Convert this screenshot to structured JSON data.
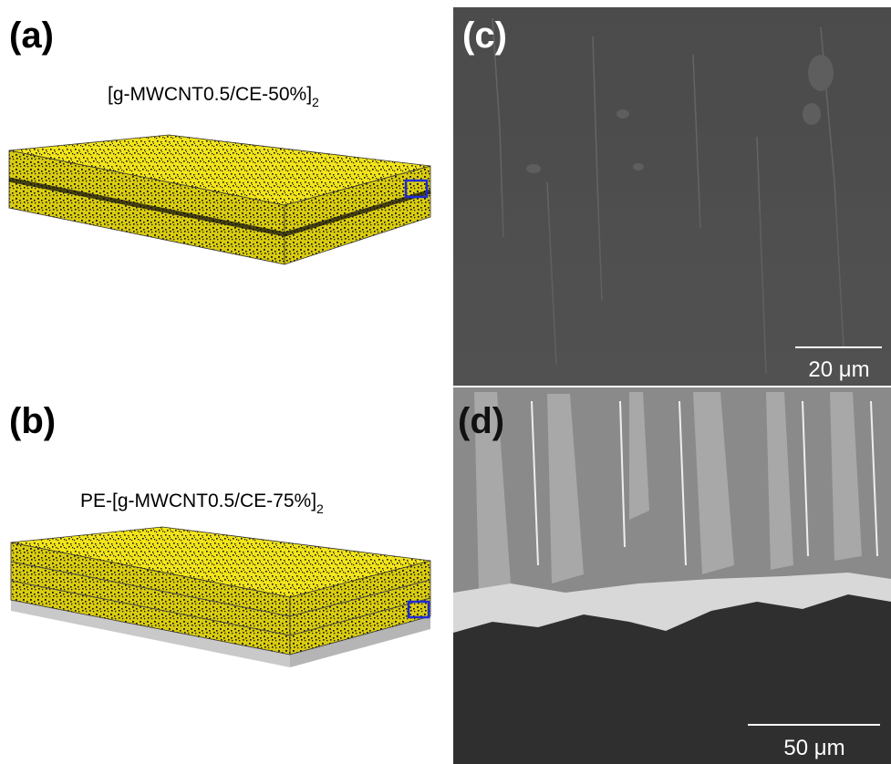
{
  "panels": [
    {
      "label": "(a)",
      "caption": "[g-MWCNT0.5/CE-50%]",
      "caption_subscript": "2"
    },
    {
      "label": "(b)",
      "caption": "PE-[g-MWCNT0.5/CE-75%]",
      "caption_subscript": "2"
    },
    {
      "label": "(c)",
      "scale_bar": "20 μm"
    },
    {
      "label": "(d)",
      "scale_bar": "50 μm"
    }
  ]
}
